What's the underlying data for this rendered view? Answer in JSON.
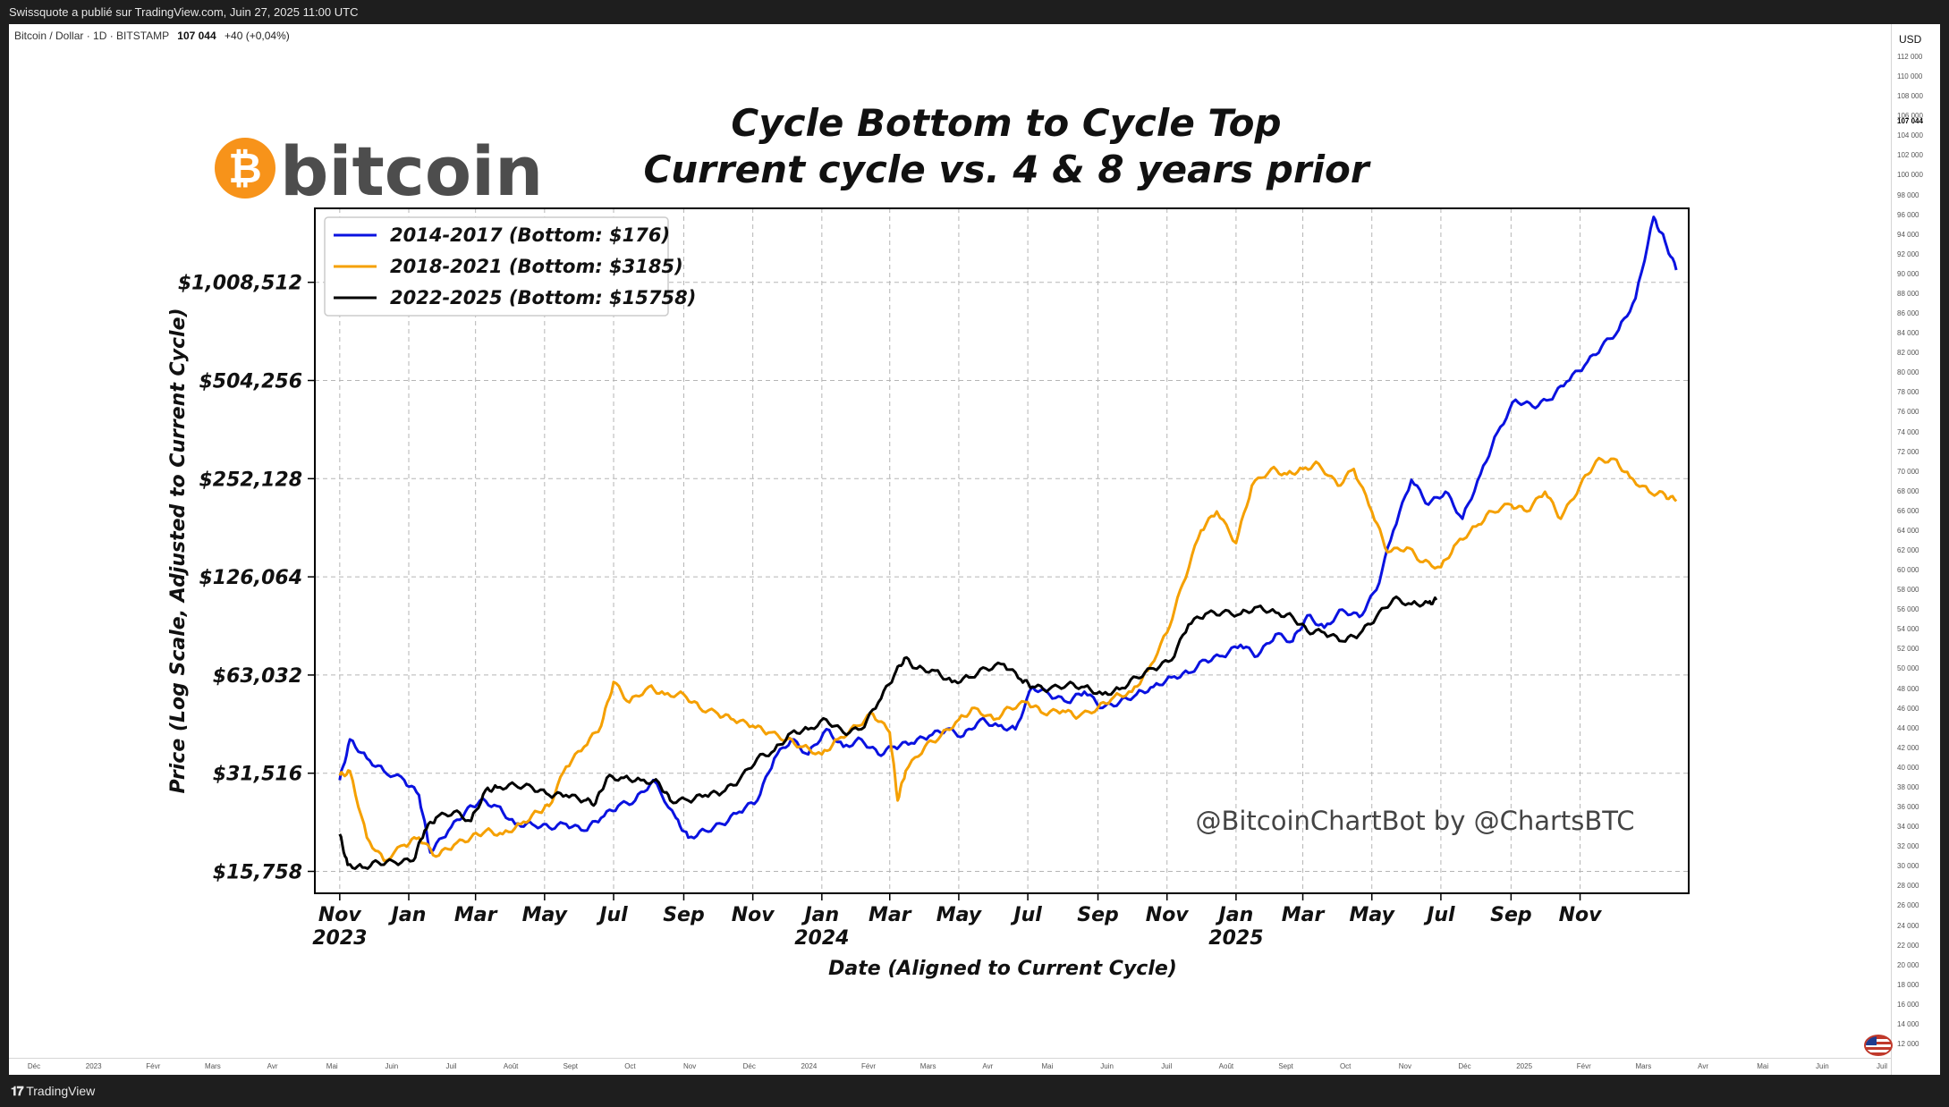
{
  "header": {
    "published": "Swissquote a publié sur TradingView.com, Juin 27, 2025 11:00 UTC"
  },
  "symbol": {
    "name": "Bitcoin / Dollar · 1D · BITSTAMP",
    "last": "107 044",
    "change": "+40 (+0,04%)"
  },
  "price_axis": {
    "currency": "USD",
    "current": "107 044",
    "ticks": [
      "112 000",
      "110 000",
      "108 000",
      "106 000",
      "104 000",
      "102 000",
      "100 000",
      "98 000",
      "96 000",
      "94 000",
      "92 000",
      "90 000",
      "88 000",
      "86 000",
      "84 000",
      "82 000",
      "80 000",
      "78 000",
      "76 000",
      "74 000",
      "72 000",
      "70 000",
      "68 000",
      "66 000",
      "64 000",
      "62 000",
      "60 000",
      "58 000",
      "56 000",
      "54 000",
      "52 000",
      "50 000",
      "48 000",
      "46 000",
      "44 000",
      "42 000",
      "40 000",
      "38 000",
      "36 000",
      "34 000",
      "32 000",
      "30 000",
      "28 000",
      "26 000",
      "24 000",
      "22 000",
      "20 000",
      "18 000",
      "16 000",
      "14 000",
      "12 000"
    ]
  },
  "time_axis": {
    "labels": [
      "Déc",
      "2023",
      "Févr",
      "Mars",
      "Avr",
      "Mai",
      "Juin",
      "Juil",
      "Août",
      "Sept",
      "Oct",
      "Nov",
      "Déc",
      "2024",
      "Févr",
      "Mars",
      "Avr",
      "Mai",
      "Juin",
      "Juil",
      "Août",
      "Sept",
      "Oct",
      "Nov",
      "Déc",
      "2025",
      "Févr",
      "Mars",
      "Avr",
      "Mai",
      "Juin",
      "Juil"
    ]
  },
  "footer": {
    "brand": "TradingView"
  },
  "logo": {
    "text": "bitcoin",
    "symbol": "₿",
    "color": "#f7931a"
  },
  "watermark": "@BitcoinChartBot by @ChartsBTC",
  "chart_data": {
    "type": "line",
    "title": "Cycle Bottom to Cycle Top",
    "subtitle": "Current cycle vs. 4 & 8 years prior",
    "xlabel": "Date (Aligned to Current Cycle)",
    "ylabel": "Price (Log Scale, Adjusted to Current Cycle)",
    "y_scale": "log2",
    "ylim": [
      13500,
      1700000
    ],
    "xlim": [
      "2022-10-10",
      "2026-02-05"
    ],
    "grid": true,
    "legend_position": "top-left",
    "y_ticks": [
      15758,
      31516,
      63032,
      126064,
      252128,
      504256,
      1008512
    ],
    "y_tick_labels": [
      "$15,758",
      "$31,516",
      "$63,032",
      "$126,064",
      "$252,128",
      "$504,256",
      "$1,008,512"
    ],
    "x_ticks": [
      "2022-11-01",
      "2023-01-01",
      "2023-03-01",
      "2023-05-01",
      "2023-07-01",
      "2023-09-01",
      "2023-11-01",
      "2024-01-01",
      "2024-03-01",
      "2024-05-01",
      "2024-07-01",
      "2024-09-01",
      "2024-11-01",
      "2025-01-01",
      "2025-03-01",
      "2025-05-01",
      "2025-07-01",
      "2025-09-01",
      "2025-11-01"
    ],
    "x_tick_labels": [
      "Nov",
      "Jan",
      "Mar",
      "May",
      "Jul",
      "Sep",
      "Nov",
      "Jan",
      "Mar",
      "May",
      "Jul",
      "Sep",
      "Nov",
      "Jan",
      "Mar",
      "May",
      "Jul",
      "Sep",
      "Nov"
    ],
    "x_year_labels": [
      "2023",
      "",
      "",
      "",
      "",
      "",
      "",
      "2024",
      "",
      "",
      "",
      "",
      "",
      "2025",
      "",
      "",
      "",
      "",
      ""
    ],
    "series": [
      {
        "name": "2014-2017 (Bottom: $176)",
        "color": "#0a12e0",
        "x": [
          "2022-11-01",
          "2022-11-10",
          "2022-11-25",
          "2022-12-10",
          "2022-12-28",
          "2023-01-10",
          "2023-01-20",
          "2023-02-05",
          "2023-02-20",
          "2023-03-05",
          "2023-03-20",
          "2023-04-05",
          "2023-04-20",
          "2023-05-05",
          "2023-05-20",
          "2023-06-05",
          "2023-06-20",
          "2023-07-05",
          "2023-07-20",
          "2023-08-05",
          "2023-08-25",
          "2023-09-05",
          "2023-09-20",
          "2023-10-05",
          "2023-10-20",
          "2023-11-05",
          "2023-11-20",
          "2023-12-05",
          "2023-12-20",
          "2024-01-05",
          "2024-01-20",
          "2024-02-05",
          "2024-02-20",
          "2024-03-05",
          "2024-03-20",
          "2024-04-05",
          "2024-04-20",
          "2024-05-05",
          "2024-05-20",
          "2024-06-05",
          "2024-06-20",
          "2024-07-05",
          "2024-07-20",
          "2024-08-05",
          "2024-08-20",
          "2024-09-05",
          "2024-09-20",
          "2024-10-05",
          "2024-10-20",
          "2024-11-05",
          "2024-11-20",
          "2024-12-05",
          "2024-12-20",
          "2025-01-05",
          "2025-01-20",
          "2025-02-05",
          "2025-02-20",
          "2025-03-05",
          "2025-03-20",
          "2025-04-05",
          "2025-04-20",
          "2025-05-05",
          "2025-05-20",
          "2025-06-05",
          "2025-06-20",
          "2025-07-05",
          "2025-07-20",
          "2025-08-05",
          "2025-08-20",
          "2025-09-05",
          "2025-09-20",
          "2025-10-05",
          "2025-10-20",
          "2025-11-05",
          "2025-11-20",
          "2025-12-05",
          "2025-12-20",
          "2026-01-05",
          "2026-01-15",
          "2026-01-25"
        ],
        "y": [
          30000,
          40000,
          35000,
          32000,
          30000,
          27000,
          18000,
          21000,
          24000,
          26000,
          25000,
          22000,
          22000,
          21500,
          22000,
          21000,
          23000,
          25000,
          26000,
          30000,
          23000,
          20000,
          21000,
          22000,
          24000,
          26000,
          35000,
          40000,
          36000,
          43000,
          38000,
          40000,
          36000,
          38000,
          39000,
          41000,
          43000,
          41000,
          46000,
          44000,
          43000,
          58000,
          55000,
          52000,
          56000,
          50000,
          52000,
          55000,
          58000,
          62000,
          64000,
          70000,
          72000,
          78000,
          72000,
          84000,
          80000,
          96000,
          88000,
          100000,
          95000,
          115000,
          175000,
          250000,
          210000,
          230000,
          190000,
          260000,
          350000,
          440000,
          420000,
          440000,
          500000,
          560000,
          640000,
          720000,
          900000,
          1600000,
          1350000,
          1100000
        ]
      },
      {
        "name": "2018-2021 (Bottom: $3185)",
        "color": "#f5a000",
        "x": [
          "2022-11-01",
          "2022-11-10",
          "2022-11-25",
          "2022-12-10",
          "2022-12-28",
          "2023-01-10",
          "2023-01-25",
          "2023-02-10",
          "2023-02-25",
          "2023-03-10",
          "2023-03-25",
          "2023-04-10",
          "2023-04-25",
          "2023-05-05",
          "2023-05-20",
          "2023-06-05",
          "2023-06-20",
          "2023-07-01",
          "2023-07-15",
          "2023-08-01",
          "2023-08-15",
          "2023-09-01",
          "2023-09-15",
          "2023-10-01",
          "2023-10-15",
          "2023-11-01",
          "2023-11-15",
          "2023-12-01",
          "2023-12-15",
          "2024-01-01",
          "2024-01-15",
          "2024-02-01",
          "2024-02-15",
          "2024-03-01",
          "2024-03-08",
          "2024-03-15",
          "2024-04-01",
          "2024-04-15",
          "2024-05-01",
          "2024-05-15",
          "2024-06-01",
          "2024-06-15",
          "2024-07-01",
          "2024-07-15",
          "2024-08-01",
          "2024-08-15",
          "2024-09-01",
          "2024-09-15",
          "2024-10-01",
          "2024-10-15",
          "2024-11-01",
          "2024-11-15",
          "2024-12-01",
          "2024-12-15",
          "2025-01-01",
          "2025-01-15",
          "2025-02-01",
          "2025-02-15",
          "2025-03-01",
          "2025-03-15",
          "2025-04-01",
          "2025-04-15",
          "2025-05-01",
          "2025-05-15",
          "2025-06-01",
          "2025-06-15",
          "2025-07-01",
          "2025-07-15",
          "2025-08-01",
          "2025-08-15",
          "2025-09-01",
          "2025-09-15",
          "2025-10-01",
          "2025-10-15",
          "2025-11-01",
          "2025-11-15",
          "2025-12-01",
          "2025-12-15",
          "2026-01-01",
          "2026-01-15",
          "2026-01-25"
        ],
        "y": [
          31000,
          32000,
          20000,
          17000,
          19000,
          20000,
          17500,
          19000,
          20000,
          21000,
          20500,
          22000,
          24000,
          25000,
          33000,
          38000,
          44000,
          60000,
          52000,
          58000,
          55000,
          55000,
          50000,
          48000,
          46000,
          44000,
          42000,
          40000,
          38000,
          36000,
          40000,
          44000,
          48000,
          42000,
          26000,
          32000,
          38000,
          41000,
          46000,
          50000,
          46000,
          50000,
          52000,
          48000,
          49000,
          47000,
          50000,
          54000,
          56000,
          65000,
          85000,
          120000,
          175000,
          200000,
          160000,
          240000,
          270000,
          260000,
          270000,
          280000,
          240000,
          270000,
          200000,
          150000,
          155000,
          140000,
          135000,
          160000,
          180000,
          200000,
          210000,
          200000,
          230000,
          190000,
          240000,
          285000,
          290000,
          255000,
          230000,
          225000,
          215000
        ]
      },
      {
        "name": "2022-2025 (Bottom: $15758)",
        "color": "#000000",
        "x": [
          "2022-11-01",
          "2022-11-08",
          "2022-11-21",
          "2022-12-05",
          "2022-12-20",
          "2023-01-05",
          "2023-01-15",
          "2023-01-25",
          "2023-02-10",
          "2023-02-25",
          "2023-03-10",
          "2023-03-20",
          "2023-04-05",
          "2023-04-20",
          "2023-05-05",
          "2023-05-20",
          "2023-06-05",
          "2023-06-15",
          "2023-06-25",
          "2023-07-10",
          "2023-07-25",
          "2023-08-10",
          "2023-08-20",
          "2023-09-05",
          "2023-09-20",
          "2023-10-05",
          "2023-10-20",
          "2023-11-05",
          "2023-11-20",
          "2023-12-05",
          "2023-12-20",
          "2024-01-05",
          "2024-01-20",
          "2024-02-05",
          "2024-02-20",
          "2024-03-05",
          "2024-03-14",
          "2024-03-25",
          "2024-04-10",
          "2024-04-25",
          "2024-05-10",
          "2024-05-25",
          "2024-06-10",
          "2024-06-25",
          "2024-07-05",
          "2024-07-20",
          "2024-08-05",
          "2024-08-20",
          "2024-09-05",
          "2024-09-20",
          "2024-10-05",
          "2024-10-20",
          "2024-11-05",
          "2024-11-20",
          "2024-12-05",
          "2024-12-20",
          "2025-01-05",
          "2025-01-20",
          "2025-02-05",
          "2025-02-20",
          "2025-03-05",
          "2025-03-20",
          "2025-04-05",
          "2025-04-20",
          "2025-05-05",
          "2025-05-20",
          "2025-06-05",
          "2025-06-20",
          "2025-06-27"
        ],
        "y": [
          20500,
          16500,
          16200,
          16800,
          16800,
          17000,
          21000,
          23000,
          24000,
          22500,
          28000,
          28500,
          29000,
          28500,
          27000,
          27000,
          26000,
          25500,
          30500,
          30500,
          30000,
          29500,
          26000,
          26000,
          27000,
          27500,
          30000,
          35000,
          37000,
          42000,
          43000,
          46000,
          42000,
          43000,
          52000,
          63000,
          71000,
          66000,
          65000,
          60000,
          62000,
          66000,
          68000,
          61000,
          58000,
          57000,
          59000,
          58000,
          55000,
          57000,
          62000,
          66000,
          70000,
          90000,
          97000,
          98000,
          97000,
          102000,
          98000,
          95000,
          86000,
          85000,
          80000,
          84000,
          95000,
          108000,
          104000,
          105000,
          107044
        ]
      }
    ]
  }
}
